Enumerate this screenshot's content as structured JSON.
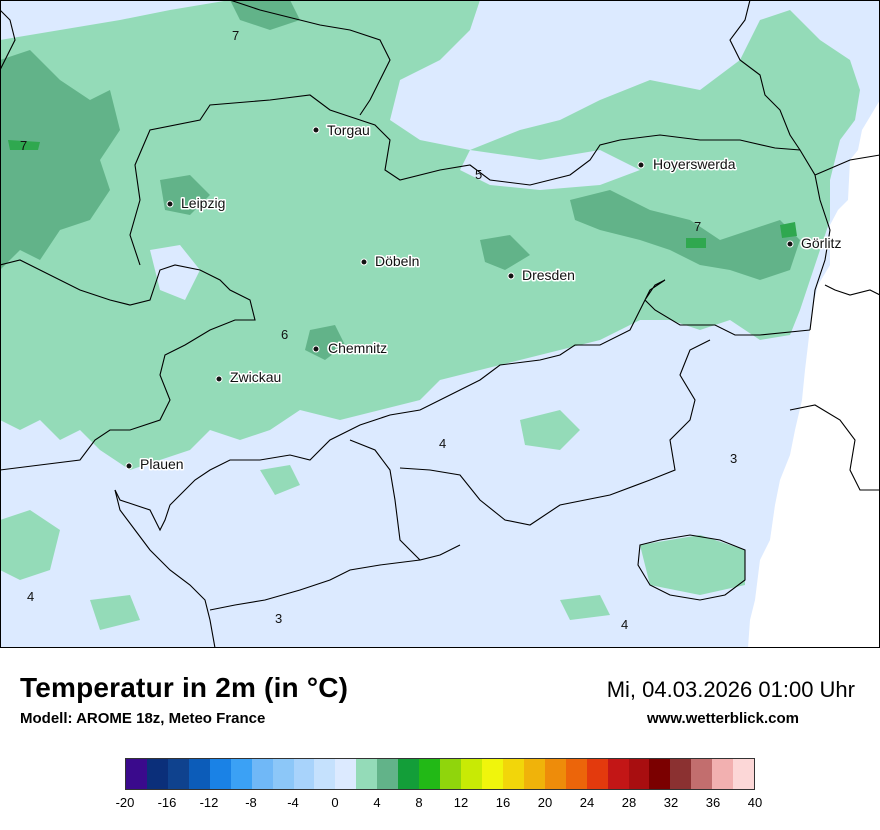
{
  "map": {
    "cities": [
      {
        "name": "Torgau"
      },
      {
        "name": "Hoyerswerda"
      },
      {
        "name": "Leipzig"
      },
      {
        "name": "Görlitz"
      },
      {
        "name": "Döbeln"
      },
      {
        "name": "Dresden"
      },
      {
        "name": "Chemnitz"
      },
      {
        "name": "Zwickau"
      },
      {
        "name": "Plauen"
      }
    ],
    "iso_labels": [
      "7",
      "7",
      "5",
      "7",
      "6",
      "4",
      "3",
      "4",
      "3",
      "4"
    ],
    "colors": {
      "cold_area": "#dceaff",
      "mild_area": "#94dbb8",
      "warm_area": "#62b389",
      "warmer_spots": "#2fa84f",
      "border": "#000000",
      "outside": "#ffffff"
    }
  },
  "footer": {
    "title": "Temperatur in 2m (in °C)",
    "model": "Modell: AROME 18z, Meteo France",
    "datetime": "Mi, 04.03.2026 01:00 Uhr",
    "website": "www.wetterblick.com"
  },
  "legend": {
    "colors": [
      "#3a0a8c",
      "#0b2f7a",
      "#0f428e",
      "#0c5cb9",
      "#1a82e6",
      "#3ba1f5",
      "#70b8f7",
      "#8cc7f8",
      "#a8d3fb",
      "#c5e1fd",
      "#dceaff",
      "#94dbb8",
      "#62b389",
      "#139e39",
      "#22b916",
      "#90d50c",
      "#c8ea05",
      "#f0f50c",
      "#f2d60a",
      "#f0b30a",
      "#ee8c0a",
      "#ec650a",
      "#e33a0d",
      "#c31616",
      "#a80e10",
      "#7b0000",
      "#8b3131",
      "#c26e6e",
      "#f2b0b0",
      "#fcd7d7"
    ],
    "ticks": [
      "-20",
      "-16",
      "-12",
      "-8",
      "-4",
      "0",
      "4",
      "8",
      "12",
      "16",
      "20",
      "24",
      "28",
      "32",
      "36",
      "40"
    ]
  }
}
